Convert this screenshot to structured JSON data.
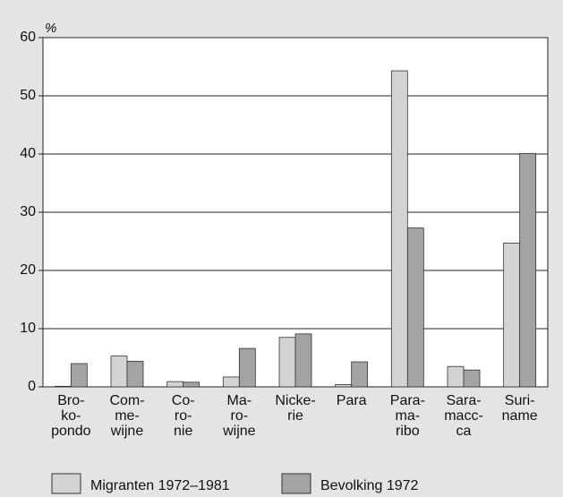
{
  "chart_data": {
    "type": "bar",
    "unit": "%",
    "categories": [
      [
        "Bro-",
        "ko-",
        "pondo"
      ],
      [
        "Com-",
        "me-",
        "wijne"
      ],
      [
        "Co-",
        "ro-",
        "nie"
      ],
      [
        "Ma-",
        "ro-",
        "wijne"
      ],
      [
        "Nicke-",
        "rie"
      ],
      [
        "Para"
      ],
      [
        "Para-",
        "ma-",
        "ribo"
      ],
      [
        "Sara-",
        "macc-",
        "ca"
      ],
      [
        "Suri-",
        "name"
      ]
    ],
    "series": [
      {
        "name": "Migranten 1972–1981",
        "color": "#d3d3d3",
        "values": [
          0.1,
          5.3,
          0.9,
          1.7,
          8.5,
          0.4,
          54.3,
          3.5,
          24.7
        ]
      },
      {
        "name": "Bevolking 1972",
        "color": "#a3a3a3",
        "values": [
          4.0,
          4.4,
          0.8,
          6.6,
          9.1,
          4.3,
          27.3,
          2.9,
          40.1
        ]
      }
    ],
    "ylim": [
      0,
      60
    ],
    "yticks": [
      0,
      10,
      20,
      30,
      40,
      50,
      60
    ],
    "grid": true
  }
}
